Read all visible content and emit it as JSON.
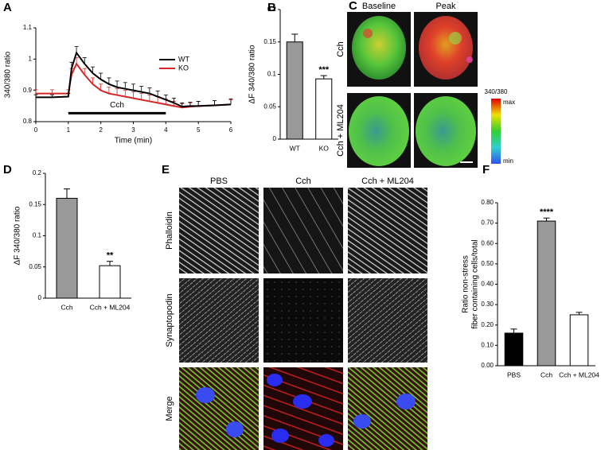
{
  "chart_data": [
    {
      "type": "line",
      "label": "A",
      "xlabel": "Time (min)",
      "ylabel": "340/380 ratio",
      "x": [
        0,
        0.5,
        1,
        1.1,
        1.25,
        1.5,
        1.75,
        2,
        2.25,
        2.5,
        2.75,
        3,
        3.25,
        3.5,
        3.75,
        4,
        4.25,
        4.5,
        4.75,
        5,
        5.5,
        6
      ],
      "series": [
        {
          "name": "WT",
          "color": "#000000",
          "values": [
            0.878,
            0.878,
            0.88,
            0.97,
            1.02,
            0.985,
            0.955,
            0.935,
            0.92,
            0.91,
            0.905,
            0.9,
            0.895,
            0.89,
            0.88,
            0.87,
            0.86,
            0.848,
            0.85,
            0.85,
            0.852,
            0.855
          ],
          "errors": [
            0.008,
            0.008,
            0.01,
            0.02,
            0.02,
            0.02,
            0.02,
            0.02,
            0.02,
            0.02,
            0.02,
            0.02,
            0.018,
            0.018,
            0.018,
            0.015,
            0.015,
            0.012,
            0.012,
            0.015,
            0.015,
            0.018
          ]
        },
        {
          "name": "KO",
          "color": "#d62728",
          "values": [
            0.89,
            0.89,
            0.89,
            0.95,
            0.985,
            0.95,
            0.92,
            0.9,
            0.89,
            0.885,
            0.88,
            0.875,
            0.87,
            0.865,
            0.86,
            0.855,
            0.85,
            0.845,
            0.848,
            0.85,
            0.852,
            0.855
          ],
          "errors": [
            0.012,
            0.012,
            0.012,
            0.02,
            0.02,
            0.02,
            0.02,
            0.02,
            0.02,
            0.02,
            0.02,
            0.02,
            0.02,
            0.02,
            0.02,
            0.018,
            0.015,
            0.012,
            0.012,
            0.015,
            0.015,
            0.015
          ]
        }
      ],
      "annotation": {
        "text": "Cch",
        "x": [
          1,
          4
        ],
        "y": 0.827
      },
      "xlim": [
        0,
        6
      ],
      "xticks": [
        0,
        1,
        2,
        3,
        4,
        5,
        6
      ],
      "ylim": [
        0.8,
        1.1
      ],
      "yticks": [
        0.8,
        0.9,
        1,
        1.1
      ],
      "legend": "upper right"
    },
    {
      "type": "bar",
      "label": "B",
      "ylabel": "ΔF 340/380 ratio",
      "categories": [
        "WT",
        "KO"
      ],
      "values": [
        0.15,
        0.093
      ],
      "errors": [
        0.012,
        0.005
      ],
      "colors": [
        "#999999",
        "#ffffff"
      ],
      "value_annotations": [
        null,
        "***"
      ],
      "ylim": [
        0,
        0.2
      ],
      "yticks": [
        0,
        0.05,
        0.1,
        0.15,
        0.2
      ]
    },
    {
      "type": "image",
      "label": "C",
      "columns": [
        "Baseline",
        "Peak"
      ],
      "rows": [
        "Cch",
        "Cch + ML204"
      ],
      "colorbar": {
        "title": "340/380",
        "max": "max",
        "min": "min"
      }
    },
    {
      "type": "bar",
      "label": "D",
      "ylabel": "ΔF 340/380 ratio",
      "categories": [
        "Cch",
        "Cch + ML204"
      ],
      "values": [
        0.16,
        0.052
      ],
      "errors": [
        0.015,
        0.007
      ],
      "colors": [
        "#999999",
        "#ffffff"
      ],
      "value_annotations": [
        null,
        "**"
      ],
      "ylim": [
        0,
        0.2
      ],
      "yticks": [
        0,
        0.05,
        0.1,
        0.15,
        0.2
      ]
    },
    {
      "type": "image",
      "label": "E",
      "columns": [
        "PBS",
        "Cch",
        "Cch + ML204"
      ],
      "rows": [
        "Phalloidin",
        "Synaptopodin",
        "Merge"
      ]
    },
    {
      "type": "bar",
      "label": "F",
      "ylabel": [
        "Ratio non-stress",
        "fiber containing cells/total"
      ],
      "categories": [
        "PBS",
        "Cch",
        "Cch + ML204"
      ],
      "values": [
        0.16,
        0.71,
        0.25
      ],
      "errors": [
        0.02,
        0.015,
        0.012
      ],
      "colors": [
        "#000000",
        "#999999",
        "#ffffff"
      ],
      "value_annotations": [
        null,
        "****",
        null
      ],
      "ylim": [
        0,
        0.8
      ],
      "yticks": [
        {
          "value": 0,
          "label": "0.00"
        },
        {
          "value": 0.1,
          "label": "0.10"
        },
        {
          "value": 0.2,
          "label": "0.20"
        },
        {
          "value": 0.3,
          "label": "0.30"
        },
        {
          "value": 0.4,
          "label": "0.40"
        },
        {
          "value": 0.5,
          "label": "0.50"
        },
        {
          "value": 0.6,
          "label": "0.60"
        },
        {
          "value": 0.7,
          "label": "0.70"
        },
        {
          "value": 0.8,
          "label": "0.80"
        }
      ]
    }
  ]
}
